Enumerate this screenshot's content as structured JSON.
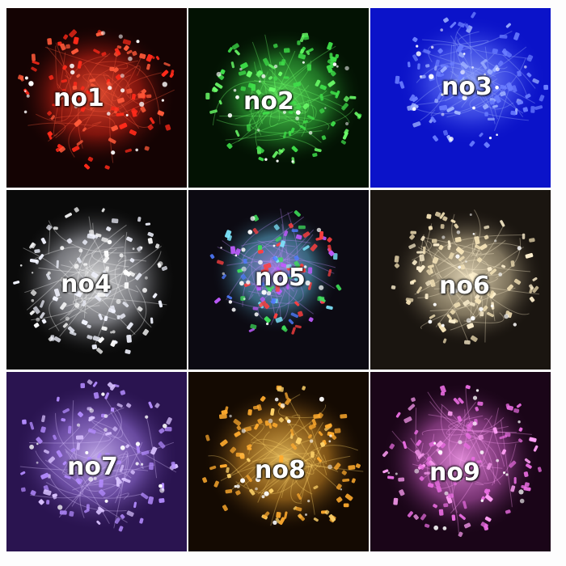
{
  "tiles": [
    {
      "label": "no1",
      "color": "#ff2a1a",
      "glow": "#ff5a3a",
      "bg": "#140303"
    },
    {
      "label": "no2",
      "color": "#3fe04a",
      "glow": "#6cff6a",
      "bg": "#031203"
    },
    {
      "label": "no3",
      "color": "#6a7dff",
      "glow": "#9fb2ff",
      "bg": "#0b13c9"
    },
    {
      "label": "no4",
      "color": "#f2f4ff",
      "glow": "#ffffff",
      "bg": "#0a0a0a"
    },
    {
      "label": "no5",
      "color": "#6fd4ff",
      "glow": "#c08cff",
      "bg": "#0c0a12"
    },
    {
      "label": "no6",
      "color": "#f6e4b8",
      "glow": "#fff1cf",
      "bg": "#1a1510"
    },
    {
      "label": "no7",
      "color": "#b48cff",
      "glow": "#d9c2ff",
      "bg": "#2a1450"
    },
    {
      "label": "no8",
      "color": "#ffab2e",
      "glow": "#ffd36a",
      "bg": "#140a02"
    },
    {
      "label": "no9",
      "color": "#e86ce0",
      "glow": "#ff9ff5",
      "bg": "#1a0518"
    }
  ]
}
